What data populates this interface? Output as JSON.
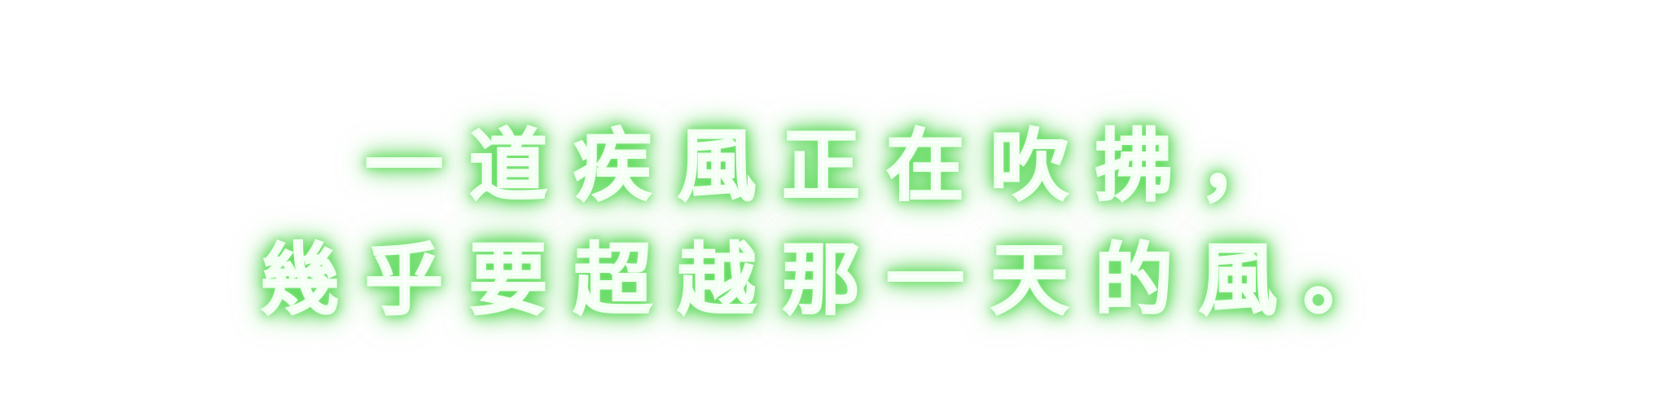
{
  "caption": {
    "line_1": "一道疾風正在吹拂，",
    "line_2": "幾乎要超越那一天的風。"
  },
  "colors": {
    "text_fill": "#ffffff",
    "glow": "#4fd34c",
    "background": "#ffffff"
  }
}
